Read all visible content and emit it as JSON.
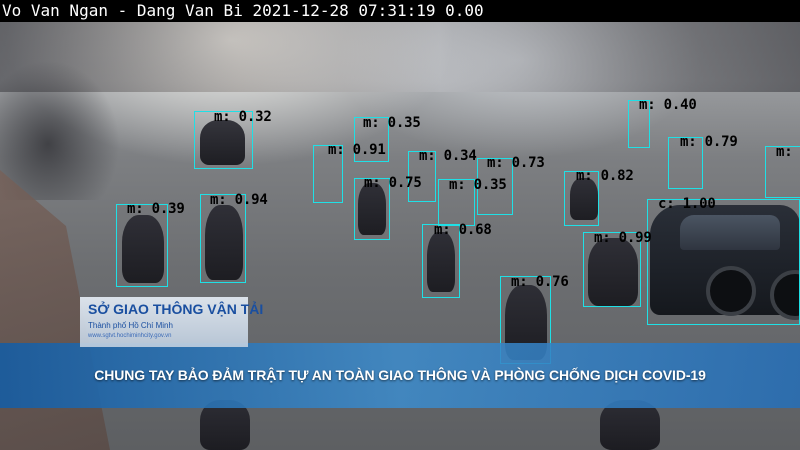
{
  "overlay": {
    "camera_title": "Vo Van Ngan - Dang Van Bi 2021-12-28 07:31:19  0.00"
  },
  "detections": [
    {
      "label": "m: 0.32"
    },
    {
      "label": "m: 0.35"
    },
    {
      "label": "m: 0.40"
    },
    {
      "label": "m: 0.91"
    },
    {
      "label": "m: 0.34"
    },
    {
      "label": "m: 0.73"
    },
    {
      "label": "m: 0.79"
    },
    {
      "label": "m:"
    },
    {
      "label": "m: 0.75"
    },
    {
      "label": "m: 0.35"
    },
    {
      "label": "m: 0.82"
    },
    {
      "label": "m: 0.39"
    },
    {
      "label": "m: 0.94"
    },
    {
      "label": "c: 1.00"
    },
    {
      "label": "m: 0.68"
    },
    {
      "label": "m: 0.99"
    },
    {
      "label": "m: 0.76"
    }
  ],
  "logo": {
    "title": "SỞ GIAO THÔNG VẬN TẢI",
    "subtitle": "Thành phố Hồ Chí Minh",
    "url": "www.sgtvt.hochiminhcity.gov.vn"
  },
  "banner": {
    "text": "CHUNG TAY BẢO ĐẢM TRẬT TỰ AN TOÀN GIAO THÔNG VÀ PHÒNG CHỐNG DỊCH COVID-19"
  },
  "colors": {
    "box_stroke": "#1fe0e6",
    "banner": "#2a78c0",
    "logo_text": "#1a4fa0"
  }
}
